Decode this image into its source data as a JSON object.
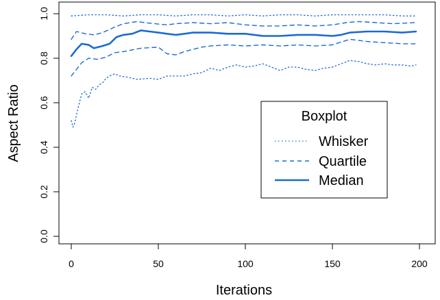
{
  "chart_data": {
    "type": "line",
    "title": "",
    "xlabel": "Iterations",
    "ylabel": "Aspect Ratio",
    "xlim": [
      0,
      200
    ],
    "ylim": [
      0,
      1
    ],
    "xticks": [
      0,
      50,
      100,
      150,
      200
    ],
    "yticks": [
      0.0,
      0.2,
      0.4,
      0.6,
      0.8,
      1.0
    ],
    "ytick_labels": [
      "0.0",
      "0.2",
      "0.4",
      "0.6",
      "0.8",
      "1.0"
    ],
    "grid": false,
    "legend": {
      "title": "Boxplot",
      "placement": "center-right",
      "entries": [
        "Whisker",
        "Quartile",
        "Median"
      ]
    },
    "line_color": "#1a6ad6",
    "series": [
      {
        "name": "Whisker",
        "role": "upper",
        "style": "dotted",
        "x": [
          0,
          10,
          20,
          30,
          40,
          50,
          60,
          70,
          80,
          90,
          100,
          110,
          120,
          130,
          140,
          150,
          160,
          170,
          180,
          190,
          198
        ],
        "values": [
          0.99,
          0.995,
          0.995,
          0.99,
          0.995,
          0.995,
          0.99,
          0.995,
          0.995,
          0.99,
          0.995,
          0.99,
          0.995,
          0.995,
          0.99,
          0.995,
          0.995,
          0.995,
          0.995,
          0.99,
          0.99
        ]
      },
      {
        "name": "Quartile",
        "role": "upper",
        "style": "dashed",
        "x": [
          0,
          3,
          8,
          13,
          18,
          25,
          30,
          38,
          42,
          48,
          55,
          60,
          70,
          80,
          90,
          100,
          110,
          120,
          130,
          140,
          150,
          158,
          165,
          175,
          185,
          198
        ],
        "values": [
          0.885,
          0.92,
          0.91,
          0.905,
          0.915,
          0.94,
          0.955,
          0.965,
          0.96,
          0.955,
          0.95,
          0.955,
          0.96,
          0.955,
          0.96,
          0.95,
          0.945,
          0.945,
          0.95,
          0.945,
          0.95,
          0.96,
          0.965,
          0.96,
          0.955,
          0.96
        ]
      },
      {
        "name": "Median",
        "role": "median",
        "style": "solid",
        "x": [
          0,
          3,
          6,
          10,
          13,
          18,
          22,
          26,
          30,
          35,
          40,
          45,
          50,
          55,
          60,
          65,
          70,
          80,
          90,
          100,
          110,
          120,
          130,
          140,
          150,
          155,
          160,
          170,
          180,
          190,
          198
        ],
        "values": [
          0.81,
          0.84,
          0.865,
          0.86,
          0.845,
          0.855,
          0.865,
          0.895,
          0.905,
          0.91,
          0.925,
          0.92,
          0.915,
          0.91,
          0.905,
          0.91,
          0.915,
          0.915,
          0.91,
          0.91,
          0.9,
          0.9,
          0.905,
          0.905,
          0.9,
          0.905,
          0.915,
          0.92,
          0.92,
          0.915,
          0.92
        ]
      },
      {
        "name": "Quartile",
        "role": "lower",
        "style": "dashed",
        "x": [
          0,
          3,
          6,
          10,
          15,
          20,
          25,
          30,
          40,
          50,
          55,
          60,
          65,
          75,
          80,
          90,
          100,
          110,
          120,
          130,
          140,
          150,
          160,
          170,
          180,
          190,
          198
        ],
        "values": [
          0.72,
          0.75,
          0.78,
          0.8,
          0.795,
          0.805,
          0.825,
          0.83,
          0.845,
          0.85,
          0.82,
          0.815,
          0.83,
          0.85,
          0.855,
          0.86,
          0.855,
          0.86,
          0.855,
          0.86,
          0.855,
          0.86,
          0.885,
          0.875,
          0.87,
          0.865,
          0.865
        ]
      },
      {
        "name": "Whisker",
        "role": "lower",
        "style": "dotted",
        "x": [
          0,
          1,
          2,
          4,
          6,
          8,
          10,
          12,
          14,
          16,
          18,
          20,
          22,
          25,
          28,
          32,
          38,
          45,
          50,
          55,
          60,
          65,
          70,
          75,
          80,
          85,
          90,
          95,
          100,
          105,
          110,
          115,
          120,
          125,
          130,
          135,
          140,
          145,
          150,
          155,
          160,
          165,
          170,
          175,
          180,
          185,
          190,
          195,
          198
        ],
        "values": [
          0.52,
          0.49,
          0.51,
          0.58,
          0.64,
          0.65,
          0.62,
          0.67,
          0.66,
          0.68,
          0.69,
          0.71,
          0.72,
          0.73,
          0.72,
          0.715,
          0.705,
          0.71,
          0.705,
          0.72,
          0.72,
          0.72,
          0.73,
          0.735,
          0.755,
          0.745,
          0.76,
          0.77,
          0.76,
          0.765,
          0.775,
          0.76,
          0.745,
          0.76,
          0.76,
          0.75,
          0.745,
          0.755,
          0.76,
          0.775,
          0.79,
          0.785,
          0.775,
          0.77,
          0.775,
          0.77,
          0.77,
          0.765,
          0.77
        ]
      }
    ]
  }
}
